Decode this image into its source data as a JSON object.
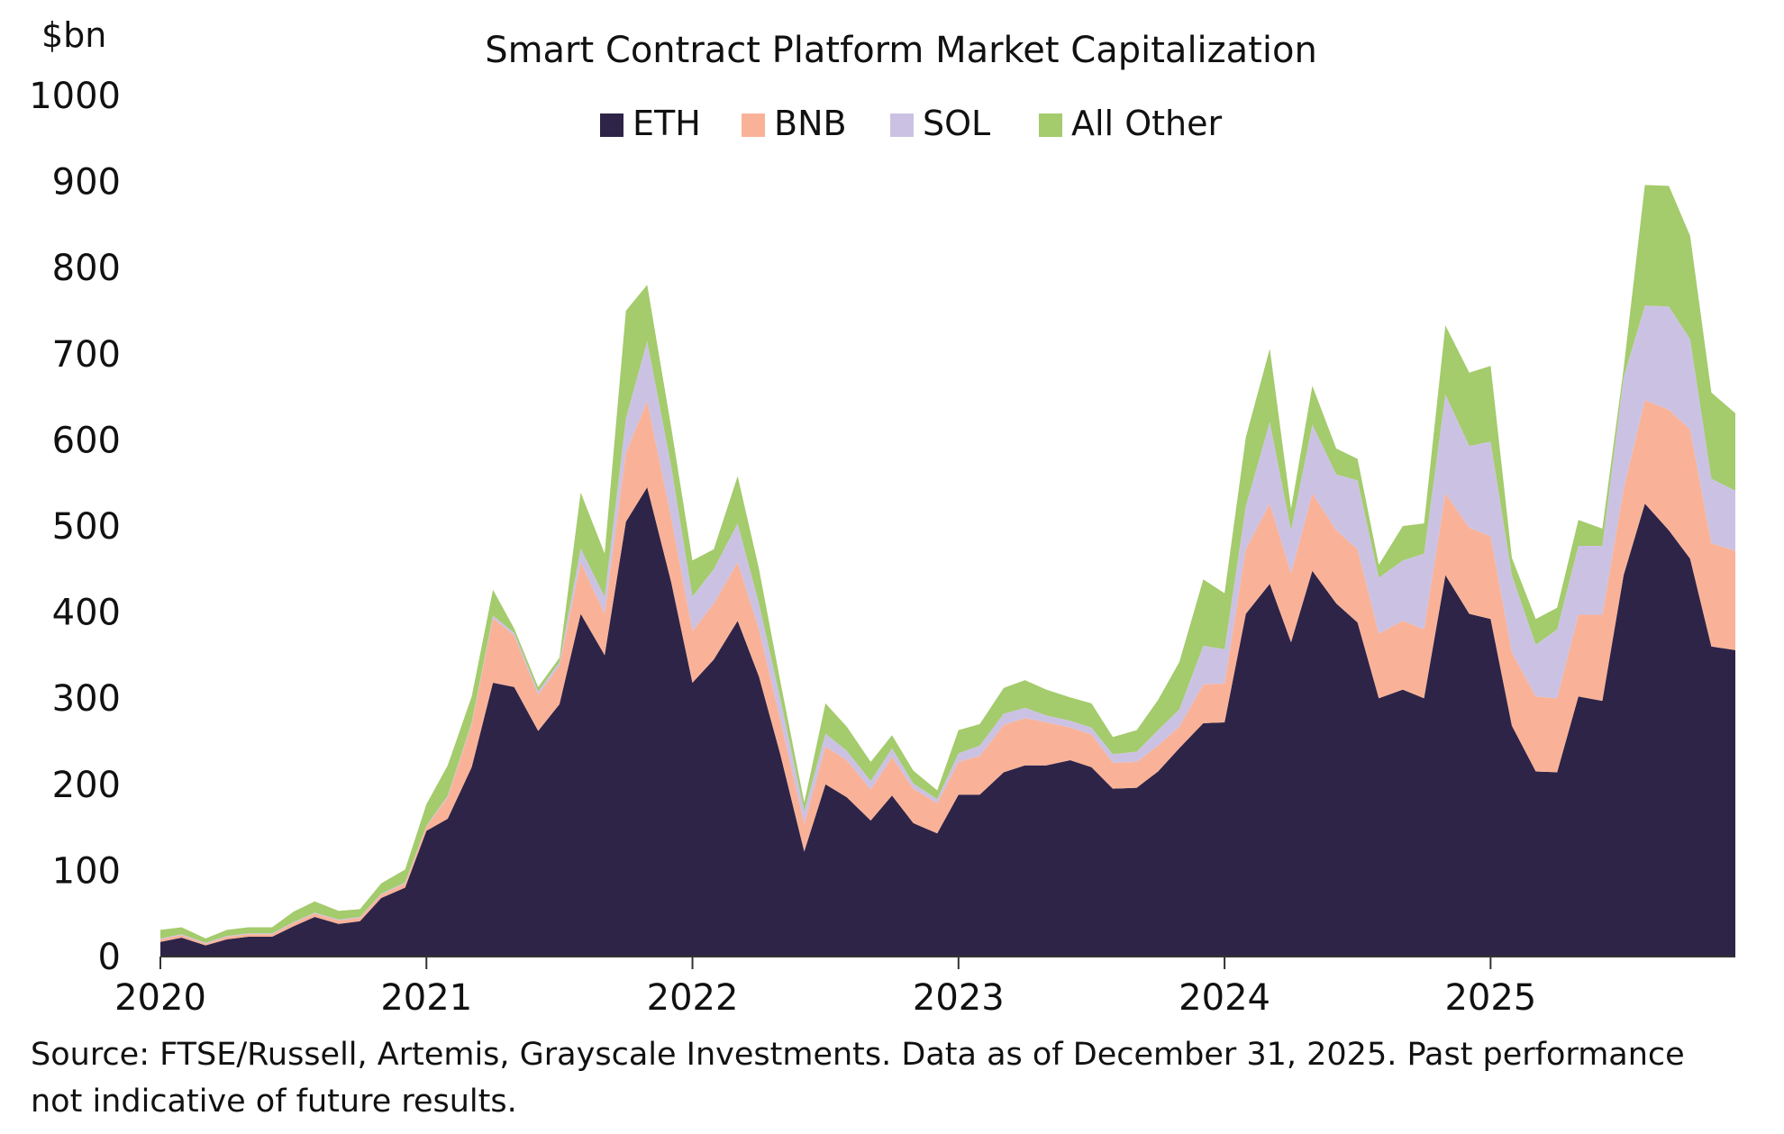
{
  "chart_data": {
    "type": "area",
    "stacked": true,
    "title": "Smart Contract Platform Market Capitalization",
    "ylabel": "$bn",
    "xlabel": "",
    "ylim": [
      0,
      1000
    ],
    "yticks": [
      0,
      100,
      200,
      300,
      400,
      500,
      600,
      700,
      800,
      900,
      1000
    ],
    "xticks": [
      "2020",
      "2021",
      "2022",
      "2023",
      "2024",
      "2025"
    ],
    "xtick_positions": [
      2020,
      2021,
      2022,
      2023,
      2024,
      2025
    ],
    "xlim": [
      2020,
      2025.92
    ],
    "grid": false,
    "legend_position": "top-center",
    "x": [
      2020.0,
      2020.08,
      2020.17,
      2020.25,
      2020.33,
      2020.42,
      2020.5,
      2020.58,
      2020.67,
      2020.75,
      2020.83,
      2020.92,
      2021.0,
      2021.08,
      2021.17,
      2021.25,
      2021.33,
      2021.42,
      2021.5,
      2021.58,
      2021.67,
      2021.75,
      2021.83,
      2021.92,
      2022.0,
      2022.08,
      2022.17,
      2022.25,
      2022.33,
      2022.42,
      2022.5,
      2022.58,
      2022.67,
      2022.75,
      2022.83,
      2022.92,
      2023.0,
      2023.08,
      2023.17,
      2023.25,
      2023.33,
      2023.42,
      2023.5,
      2023.58,
      2023.67,
      2023.75,
      2023.83,
      2023.92,
      2024.0,
      2024.08,
      2024.17,
      2024.25,
      2024.33,
      2024.42,
      2024.5,
      2024.58,
      2024.67,
      2024.75,
      2024.83,
      2024.92,
      2025.0,
      2025.08,
      2025.17,
      2025.25,
      2025.33,
      2025.42,
      2025.5,
      2025.58,
      2025.67,
      2025.75,
      2025.83,
      2025.92
    ],
    "series": [
      {
        "name": "ETH",
        "color": "#2e2448",
        "values": [
          17,
          22,
          13,
          20,
          23,
          23,
          35,
          46,
          38,
          41,
          68,
          80,
          146,
          160,
          220,
          318,
          313,
          262,
          293,
          398,
          350,
          505,
          545,
          435,
          318,
          345,
          390,
          325,
          235,
          122,
          200,
          185,
          158,
          187,
          155,
          143,
          188,
          188,
          214,
          222,
          222,
          228,
          220,
          195,
          196,
          215,
          242,
          271,
          272,
          398,
          433,
          365,
          448,
          410,
          388,
          300,
          310,
          300,
          443,
          398,
          392,
          268,
          215,
          214,
          302,
          297,
          443,
          526,
          495,
          462,
          360,
          356
        ]
      },
      {
        "name": "BNB",
        "color": "#f9b298",
        "values": [
          3,
          3,
          2,
          3,
          3,
          3,
          4,
          4,
          4,
          4,
          4,
          5,
          5,
          25,
          50,
          75,
          60,
          42,
          45,
          60,
          48,
          80,
          100,
          75,
          60,
          65,
          68,
          55,
          40,
          32,
          44,
          43,
          36,
          45,
          40,
          35,
          38,
          45,
          55,
          55,
          50,
          38,
          38,
          30,
          30,
          30,
          25,
          45,
          45,
          75,
          93,
          80,
          90,
          85,
          85,
          75,
          80,
          80,
          95,
          100,
          96,
          85,
          87,
          86,
          95,
          100,
          100,
          120,
          140,
          150,
          120,
          115
        ]
      },
      {
        "name": "SOL",
        "color": "#cbc2e3",
        "values": [
          1,
          1,
          1,
          1,
          1,
          1,
          1,
          1,
          1,
          1,
          1,
          1,
          1,
          2,
          2,
          3,
          3,
          4,
          4,
          16,
          20,
          40,
          70,
          60,
          40,
          40,
          45,
          30,
          25,
          15,
          15,
          11,
          10,
          10,
          6,
          5,
          10,
          12,
          13,
          12,
          8,
          8,
          8,
          10,
          12,
          18,
          20,
          45,
          40,
          50,
          95,
          50,
          80,
          65,
          80,
          65,
          70,
          88,
          115,
          95,
          110,
          90,
          60,
          80,
          80,
          80,
          130,
          110,
          120,
          105,
          75,
          70
        ]
      },
      {
        "name": "All Other",
        "color": "#a4cb6c",
        "values": [
          10,
          8,
          5,
          7,
          7,
          7,
          12,
          13,
          10,
          9,
          12,
          15,
          25,
          35,
          30,
          30,
          5,
          5,
          5,
          65,
          50,
          125,
          65,
          45,
          42,
          23,
          55,
          40,
          20,
          10,
          35,
          28,
          22,
          15,
          15,
          10,
          27,
          25,
          30,
          32,
          30,
          27,
          28,
          20,
          25,
          35,
          55,
          77,
          65,
          80,
          85,
          25,
          45,
          30,
          25,
          15,
          40,
          35,
          80,
          85,
          88,
          20,
          30,
          25,
          30,
          20,
          10,
          140,
          140,
          120,
          100,
          90
        ]
      }
    ]
  },
  "source_note": "Source: FTSE/Russell, Artemis, Grayscale Investments. Data as of December 31, 2025. Past performance not indicative of future results."
}
